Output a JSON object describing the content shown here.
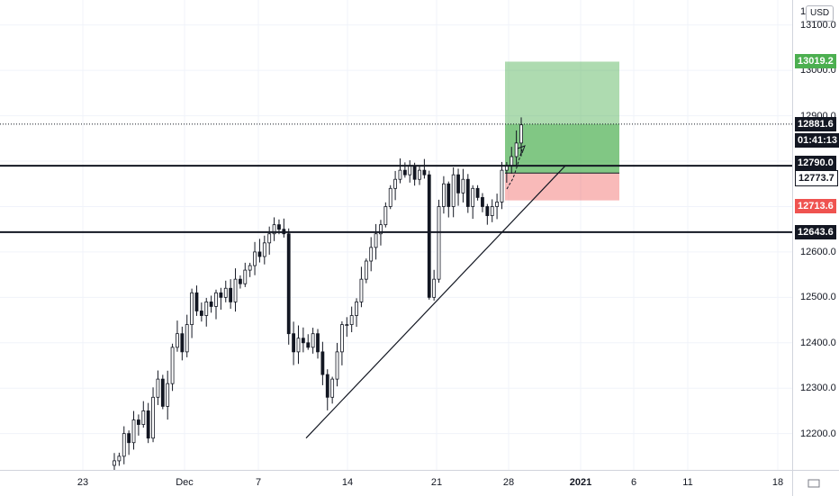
{
  "currency": "USD",
  "price_axis_top_partial": "1",
  "chart_data": {
    "type": "candlestick",
    "ylim": [
      12120,
      13155
    ],
    "price_ticks": [
      "13100.0",
      "13000.0",
      "12900.0",
      "12800.0",
      "12700.0",
      "12600.0",
      "12500.0",
      "12400.0",
      "12300.0",
      "12200.0"
    ],
    "time_ticks": [
      "23",
      "Dec",
      "7",
      "14",
      "21",
      "28",
      "2021",
      "6",
      "11",
      "18"
    ],
    "horizontal_lines": [
      12790.0,
      12643.6
    ],
    "last_price_line": 12881.6,
    "position": {
      "target": 13019.2,
      "entry": 12773.7,
      "stop": 12713.6
    },
    "trendline": {
      "from": 12190,
      "to": 12790
    },
    "price_tags": {
      "target": "13019.2",
      "last": "12881.6",
      "countdown": "01:41:13",
      "level_upper": "12790.0",
      "entry": "12773.7",
      "stop": "12713.6",
      "level_lower": "12643.6"
    },
    "path": [
      12140,
      12150,
      12200,
      12180,
      12230,
      12220,
      12250,
      12190,
      12280,
      12320,
      12260,
      12310,
      12390,
      12420,
      12380,
      12440,
      12510,
      12470,
      12460,
      12490,
      12480,
      12510,
      12500,
      12520,
      12490,
      12540,
      12530,
      12560,
      12570,
      12600,
      12590,
      12620,
      12640,
      12660,
      12650,
      12640,
      12420,
      12380,
      12410,
      12400,
      12390,
      12420,
      12380,
      12330,
      12280,
      12320,
      12380,
      12440,
      12440,
      12460,
      12490,
      12540,
      12580,
      12610,
      12640,
      12660,
      12700,
      12740,
      12760,
      12780,
      12770,
      12790,
      12760,
      12780,
      12770,
      12500,
      12540,
      12700,
      12750,
      12700,
      12770,
      12730,
      12760,
      12700,
      12740,
      12720,
      12700,
      12680,
      12700,
      12710,
      12780,
      12790,
      12810,
      12840,
      12880
    ]
  }
}
